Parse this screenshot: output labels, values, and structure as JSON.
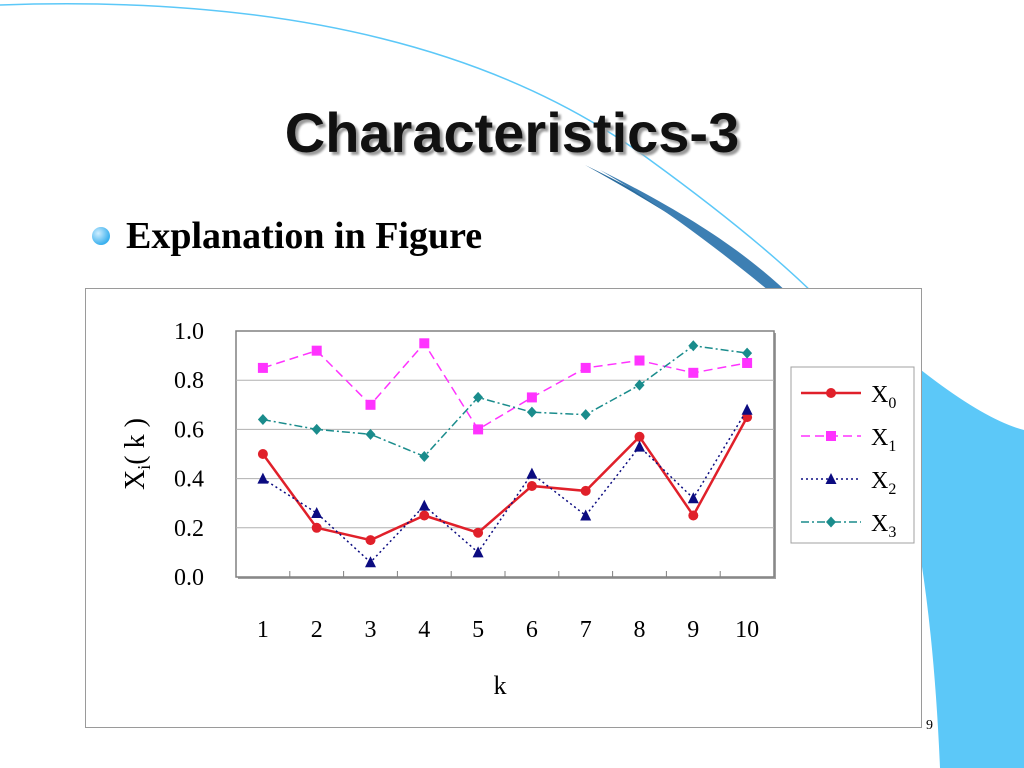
{
  "slide": {
    "title": "Characteristics-3",
    "bullet": "Explanation in Figure",
    "page_number": "9"
  },
  "colors": {
    "accent_blue": "#5cc8f8",
    "dark_blue": "#2a6c9e"
  },
  "chart_data": {
    "type": "line",
    "categories": [
      "1",
      "2",
      "3",
      "4",
      "5",
      "6",
      "7",
      "8",
      "9",
      "10"
    ],
    "xlabel": "k",
    "ylabel_main": "X",
    "ylabel_sub": "i",
    "ylabel_tail": "( k )",
    "ylim": [
      0.0,
      1.0
    ],
    "yticks": [
      "0.0",
      "0.2",
      "0.4",
      "0.6",
      "0.8",
      "1.0"
    ],
    "grid": "horizontal",
    "legend_position": "right",
    "series": [
      {
        "name": "X",
        "sub": "0",
        "color": "#e0202a",
        "dash": "",
        "marker": "circle",
        "width": 2.5,
        "values": [
          0.5,
          0.2,
          0.15,
          0.25,
          0.18,
          0.37,
          0.35,
          0.57,
          0.25,
          0.65
        ]
      },
      {
        "name": "X",
        "sub": "1",
        "color": "#ff33ff",
        "dash": "9,5",
        "marker": "square",
        "width": 1.5,
        "values": [
          0.85,
          0.92,
          0.7,
          0.95,
          0.6,
          0.73,
          0.85,
          0.88,
          0.83,
          0.87
        ]
      },
      {
        "name": "X",
        "sub": "2",
        "color": "#0b0b80",
        "dash": "2,3",
        "marker": "triangle",
        "width": 1.5,
        "values": [
          0.4,
          0.26,
          0.06,
          0.29,
          0.1,
          0.42,
          0.25,
          0.53,
          0.32,
          0.68
        ]
      },
      {
        "name": "X",
        "sub": "3",
        "color": "#1a8c8c",
        "dash": "8,3,2,3",
        "marker": "diamond",
        "width": 1.5,
        "values": [
          0.64,
          0.6,
          0.58,
          0.49,
          0.73,
          0.67,
          0.66,
          0.78,
          0.94,
          0.91
        ]
      }
    ]
  }
}
